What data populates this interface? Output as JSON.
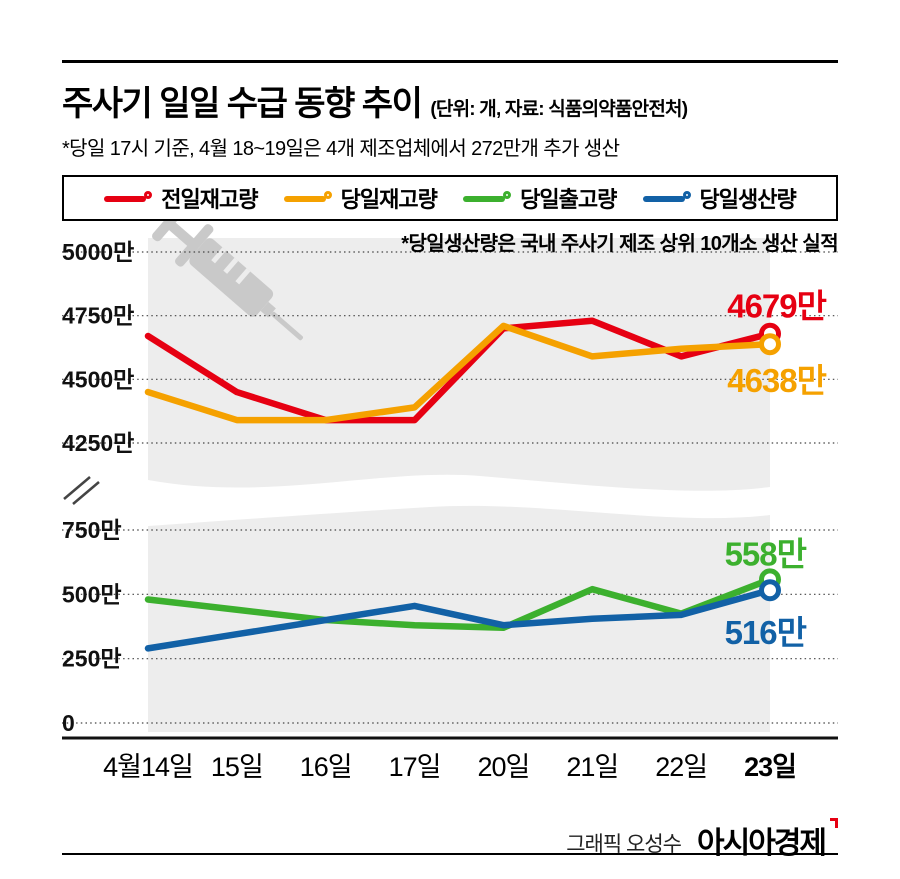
{
  "header": {
    "title": "주사기 일일 수급 동향 추이",
    "unit_note": "(단위: 개, 자료: 식품의약품안전처)",
    "subtitle": "*당일 17시 기준, 4월 18~19일은 4개 제조업체에서 272만개 추가 생산"
  },
  "legend": {
    "items": [
      {
        "label": "전일재고량",
        "color": "#e60012"
      },
      {
        "label": "당일재고량",
        "color": "#f5a100"
      },
      {
        "label": "당일출고량",
        "color": "#3cb02e"
      },
      {
        "label": "당일생산량",
        "color": "#1261a6"
      }
    ]
  },
  "note": "*당일생산량은 국내 주사기 제조 상위 10개소 생산 실적",
  "chart_data": {
    "type": "line",
    "title": "주사기 일일 수급 동향 추이",
    "unit": "개",
    "source": "식품의약품안전처",
    "categories": [
      "4월14일",
      "15일",
      "16일",
      "17일",
      "20일",
      "21일",
      "22일",
      "23일"
    ],
    "series": [
      {
        "name": "전일재고량",
        "color": "#e60012",
        "values": [
          4670,
          4450,
          4340,
          4340,
          4700,
          4730,
          4590,
          4679
        ],
        "end_label": "4679만"
      },
      {
        "name": "당일재고량",
        "color": "#f5a100",
        "values": [
          4450,
          4340,
          4340,
          4390,
          4710,
          4590,
          4620,
          4638
        ],
        "end_label": "4638만"
      },
      {
        "name": "당일출고량",
        "color": "#3cb02e",
        "values": [
          480,
          440,
          400,
          380,
          370,
          520,
          425,
          558
        ],
        "end_label": "558만"
      },
      {
        "name": "당일생산량",
        "color": "#1261a6",
        "values": [
          290,
          345,
          400,
          455,
          380,
          405,
          420,
          516
        ],
        "end_label": "516만"
      }
    ],
    "y_ticks_top": [
      "5000만",
      "4750만",
      "4500만",
      "4250만"
    ],
    "y_ticks_top_values": [
      5000,
      4750,
      4500,
      4250
    ],
    "y_ticks_bottom": [
      "750만",
      "500만",
      "250만",
      "0"
    ],
    "y_ticks_bottom_values": [
      750,
      500,
      250,
      0
    ],
    "axis_break_between": [
      750,
      4250
    ],
    "grid": "dotted",
    "legend_position": "top",
    "bold_last_category": true
  },
  "footer": {
    "credit": "그래픽 오성수",
    "brand": "아시아경제"
  }
}
